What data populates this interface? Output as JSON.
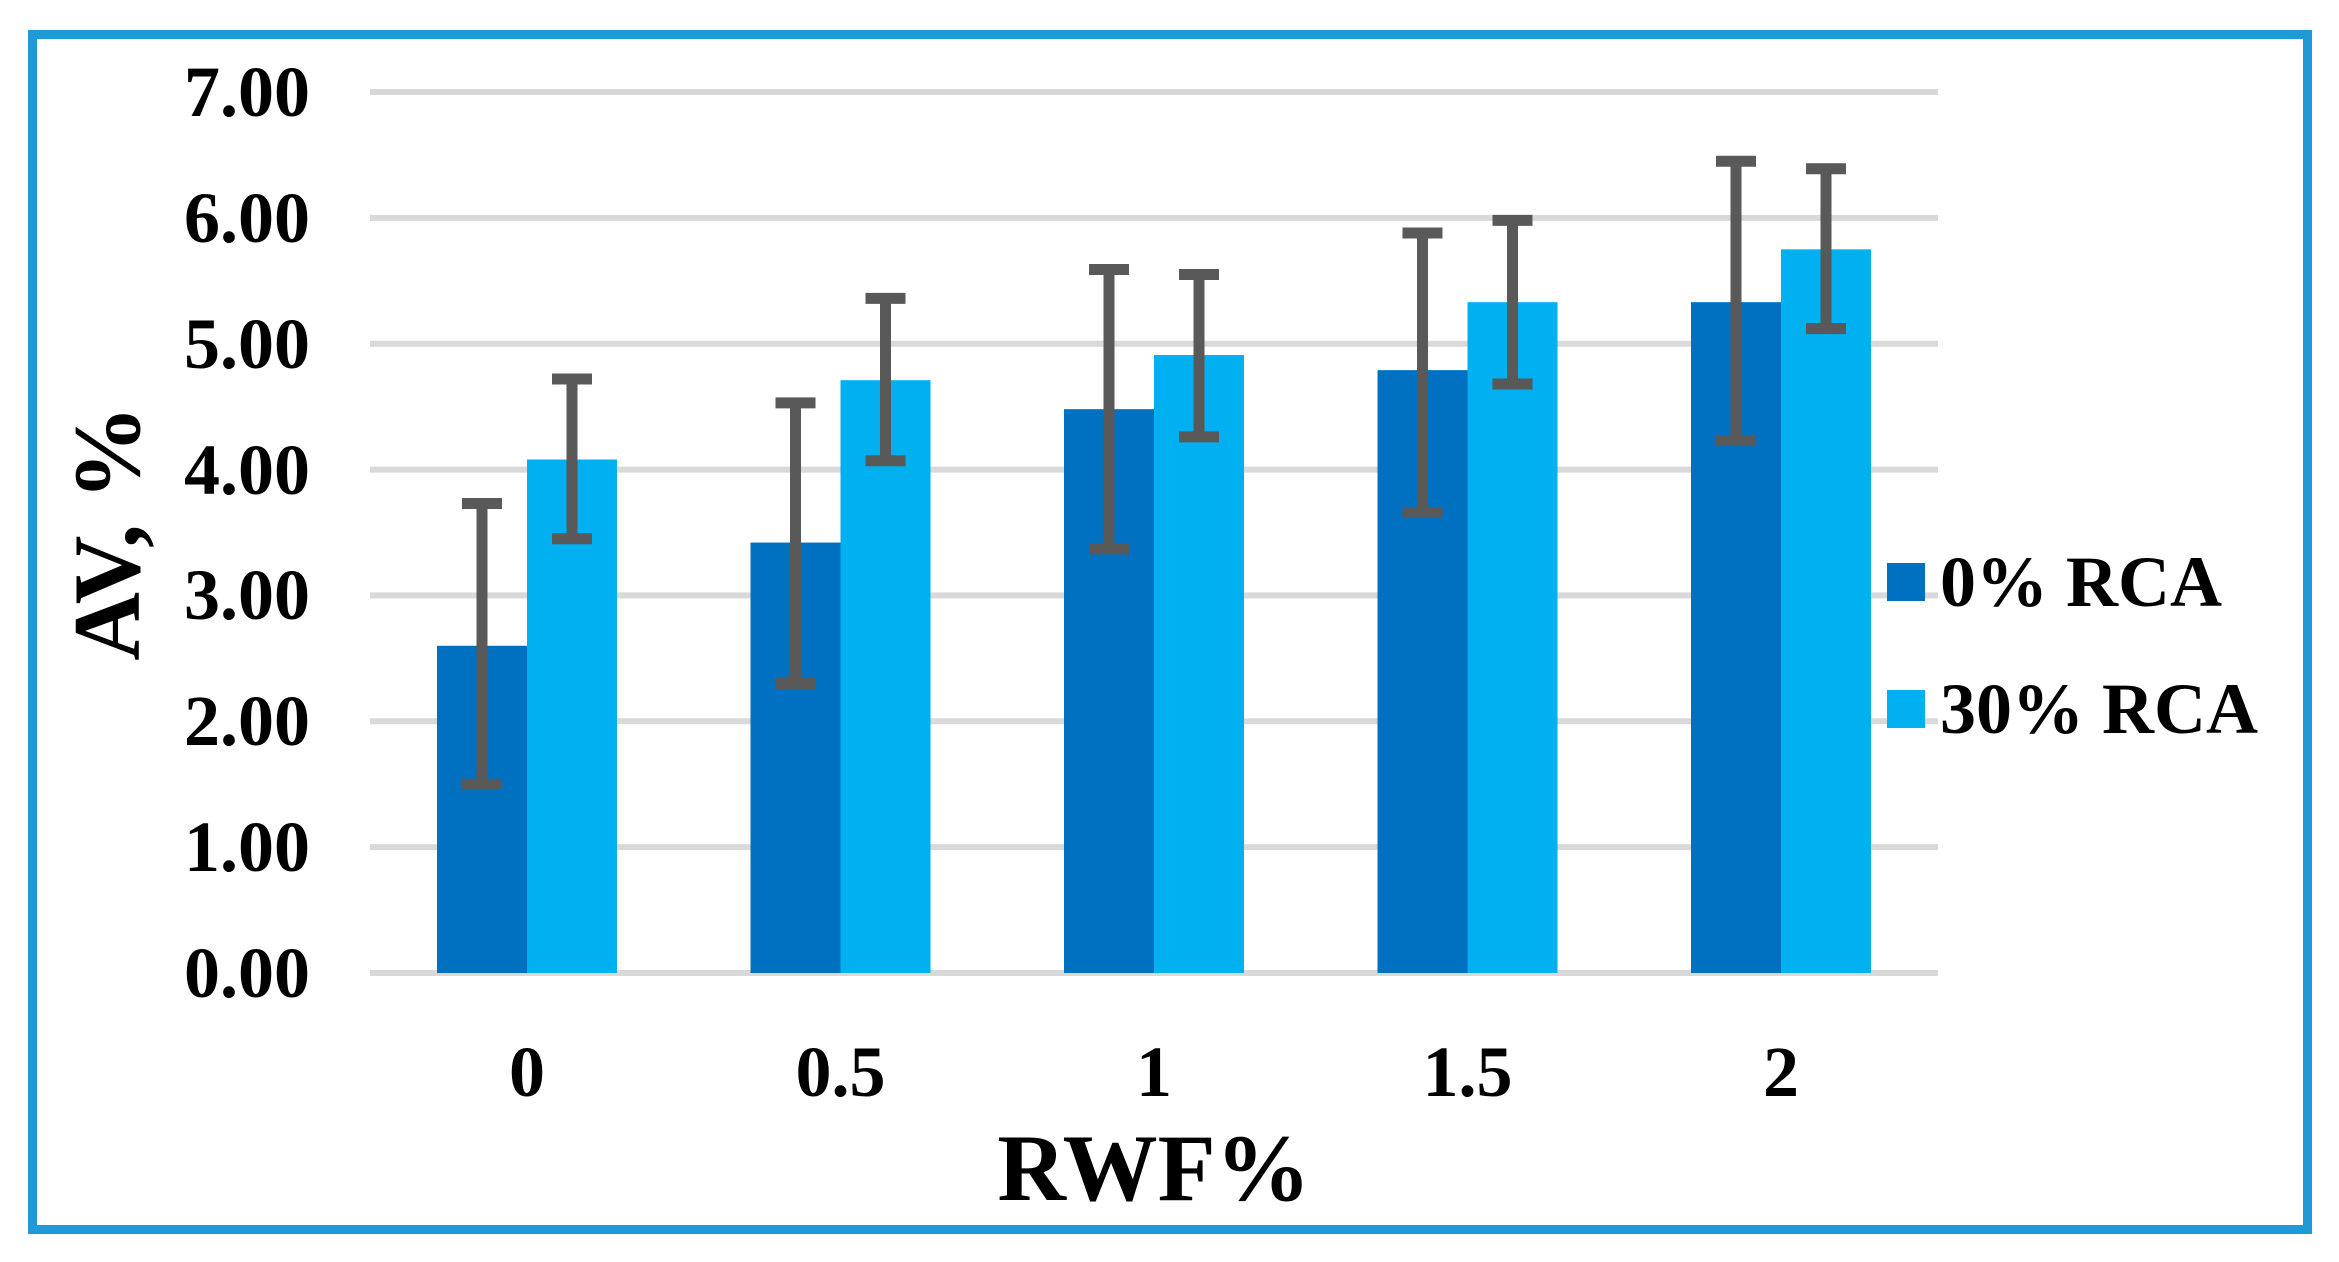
{
  "chart_data": {
    "type": "bar",
    "title": "",
    "xlabel": "RWF%",
    "ylabel": "AV, %",
    "categories": [
      "0",
      "0.5",
      "1",
      "1.5",
      "2"
    ],
    "y_ticks": [
      "0.00",
      "1.00",
      "2.00",
      "3.00",
      "4.00",
      "5.00",
      "6.00",
      "7.00"
    ],
    "ylim": [
      0,
      7
    ],
    "grid": "horizontal",
    "legend_position": "right",
    "series": [
      {
        "name": "0% RCA",
        "color": "#0070C0",
        "values": [
          2.6,
          3.42,
          4.48,
          4.79,
          5.33
        ],
        "error_low": [
          1.5,
          2.3,
          3.37,
          3.66,
          4.23
        ],
        "error_high": [
          3.73,
          4.53,
          5.59,
          5.88,
          6.45
        ]
      },
      {
        "name": "30% RCA",
        "color": "#00B0F0",
        "values": [
          4.08,
          4.71,
          4.91,
          5.33,
          5.75
        ],
        "error_low": [
          3.45,
          4.07,
          4.26,
          4.68,
          5.12
        ],
        "error_high": [
          4.72,
          5.36,
          5.55,
          5.98,
          6.39
        ]
      }
    ],
    "colors": {
      "error_bar": "#595959",
      "gridline": "#D9D9D9",
      "frame": "#1E9AD6",
      "background": "#FFFFFF"
    }
  }
}
